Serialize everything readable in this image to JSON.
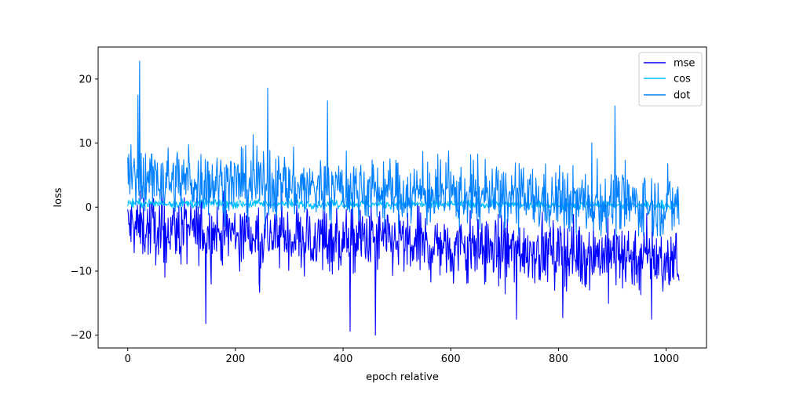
{
  "chart_data": {
    "type": "line",
    "title": "",
    "xlabel": "epoch relative",
    "ylabel": "loss",
    "xlim": [
      -55,
      1075
    ],
    "ylim": [
      -22,
      25
    ],
    "x_ticks": [
      0,
      200,
      400,
      600,
      800,
      1000
    ],
    "y_ticks": [
      -20,
      -10,
      0,
      10,
      20
    ],
    "grid": false,
    "legend_position": "top-right",
    "n_points": 1025,
    "x_range": [
      0,
      1024
    ],
    "series": [
      {
        "name": "mse",
        "color": "#0000ff",
        "trend_start": -3.0,
        "trend_end": -8.0,
        "noise_sd": 2.6,
        "approx_min": -20.0,
        "approx_max": 2.5,
        "notable_points": [
          {
            "x": 145,
            "y": -18.2
          },
          {
            "x": 413,
            "y": -19.4
          },
          {
            "x": 460,
            "y": -20.0
          },
          {
            "x": 722,
            "y": -17.5
          },
          {
            "x": 973,
            "y": -17.5
          }
        ]
      },
      {
        "name": "cos",
        "color": "#00bfff",
        "trend_start": 0.6,
        "trend_end": 0.3,
        "noise_sd": 0.35,
        "approx_min": -1.0,
        "approx_max": 1.5
      },
      {
        "name": "dot",
        "color": "#0080ff",
        "trend_start": 4.5,
        "trend_end": 0.0,
        "noise_sd": 2.5,
        "approx_min": -4.5,
        "approx_max": 23.0,
        "notable_points": [
          {
            "x": 22,
            "y": 22.8
          },
          {
            "x": 19,
            "y": 17.5
          },
          {
            "x": 260,
            "y": 18.6
          },
          {
            "x": 371,
            "y": 16.6
          },
          {
            "x": 905,
            "y": 15.8
          }
        ]
      }
    ]
  }
}
